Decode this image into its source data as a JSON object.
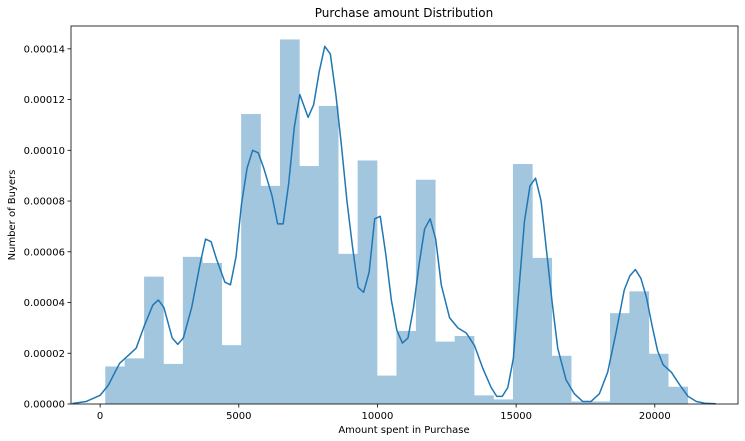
{
  "chart_data": {
    "type": "bar",
    "title": "Purchase amount Distribution",
    "xlabel": "Amount spent in Purchase",
    "ylabel": "Number of Buyers",
    "xlim": [
      -1050,
      23000
    ],
    "ylim": [
      0,
      0.000149
    ],
    "grid": false,
    "x_ticks": [
      0,
      5000,
      10000,
      15000,
      20000
    ],
    "x_tick_labels": [
      "0",
      "5000",
      "10000",
      "15000",
      "20000"
    ],
    "y_ticks": [
      0,
      2e-05,
      4e-05,
      6e-05,
      8e-05,
      0.0001,
      0.00012,
      0.00014
    ],
    "y_tick_labels": [
      "0.00000",
      "0.00002",
      "0.00004",
      "0.00006",
      "0.00008",
      "0.00010",
      "0.00012",
      "0.00014"
    ],
    "histogram": {
      "color": "#a3c6df",
      "bin_edges": [
        185,
        885,
        1585,
        2285,
        2985,
        3685,
        4385,
        5085,
        5785,
        6485,
        7185,
        7885,
        8585,
        9285,
        9985,
        10685,
        11385,
        12085,
        12785,
        13485,
        14185,
        14885,
        15585,
        16285,
        16985,
        17685,
        18385,
        19085,
        19785,
        20485,
        21185
      ],
      "densities": [
        1.48e-05,
        1.8e-05,
        5.02e-05,
        1.58e-05,
        5.8e-05,
        5.56e-05,
        2.32e-05,
        0.0001143,
        8.6e-05,
        0.0001437,
        9.38e-05,
        0.0001175,
        5.92e-05,
        9.6e-05,
        1.12e-05,
        2.88e-05,
        8.84e-05,
        2.46e-05,
        2.68e-05,
        3.4e-06,
        1.8e-06,
        9.46e-05,
        5.76e-05,
        1.9e-05,
        1e-06,
        1e-06,
        3.58e-05,
        4.44e-05,
        1.98e-05,
        6.8e-06
      ]
    },
    "kde": {
      "color": "#1f77b4",
      "x": [
        -1000,
        -500,
        0,
        300,
        700,
        1000,
        1300,
        1600,
        1900,
        2100,
        2300,
        2600,
        2800,
        3000,
        3300,
        3600,
        3800,
        4000,
        4200,
        4500,
        4700,
        4900,
        5100,
        5300,
        5500,
        5700,
        5900,
        6200,
        6400,
        6600,
        6800,
        7000,
        7200,
        7500,
        7700,
        7900,
        8100,
        8300,
        8500,
        8700,
        8900,
        9100,
        9300,
        9500,
        9700,
        9900,
        10100,
        10300,
        10500,
        10700,
        10900,
        11100,
        11300,
        11500,
        11700,
        11900,
        12100,
        12300,
        12600,
        12900,
        13200,
        13500,
        13800,
        14100,
        14300,
        14500,
        14700,
        14900,
        15100,
        15300,
        15500,
        15700,
        15900,
        16100,
        16300,
        16500,
        16800,
        17100,
        17400,
        17700,
        18000,
        18300,
        18600,
        18900,
        19100,
        19300,
        19500,
        19700,
        19900,
        20100,
        20300,
        20600,
        20900,
        21200,
        21500,
        21800,
        22200
      ],
      "y": [
        2e-07,
        1e-06,
        3.4e-06,
        7.5e-06,
        1.6e-05,
        1.9e-05,
        2.2e-05,
        3.1e-05,
        3.9e-05,
        4.1e-05,
        3.8e-05,
        2.6e-05,
        2.35e-05,
        2.6e-05,
        3.8e-05,
        5.5e-05,
        6.5e-05,
        6.4e-05,
        5.7e-05,
        4.8e-05,
        4.7e-05,
        5.8e-05,
        7.9e-05,
        9.3e-05,
        0.0001,
        9.9e-05,
        9.3e-05,
        8.2e-05,
        7.1e-05,
        7.1e-05,
        8.7e-05,
        0.000109,
        0.000122,
        0.000113,
        0.000118,
        0.000131,
        0.000141,
        0.000138,
        0.000122,
        0.000102,
        8e-05,
        6.2e-05,
        4.6e-05,
        4.4e-05,
        5.2e-05,
        7.3e-05,
        7.4e-05,
        5.9e-05,
        4.1e-05,
        2.9e-05,
        2.4e-05,
        2.6e-05,
        3.8e-05,
        5.5e-05,
        6.9e-05,
        7.3e-05,
        6.5e-05,
        4.7e-05,
        3.4e-05,
        3e-05,
        2.8e-05,
        2.3e-05,
        1.4e-05,
        6.5e-06,
        3e-06,
        3e-06,
        6.5e-06,
        1.8e-05,
        4.5e-05,
        7.2e-05,
        8.6e-05,
        8.9e-05,
        8e-05,
        6e-05,
        4e-05,
        2.2e-05,
        9.5e-06,
        4e-06,
        1e-06,
        1e-06,
        4e-06,
        1.25e-05,
        2.8e-05,
        4.5e-05,
        5.05e-05,
        5.3e-05,
        4.95e-05,
        4.2e-05,
        3.1e-05,
        2.1e-05,
        1.55e-05,
        1.25e-05,
        7.5e-06,
        3e-06,
        1e-06,
        3e-07,
        1e-07
      ]
    }
  }
}
